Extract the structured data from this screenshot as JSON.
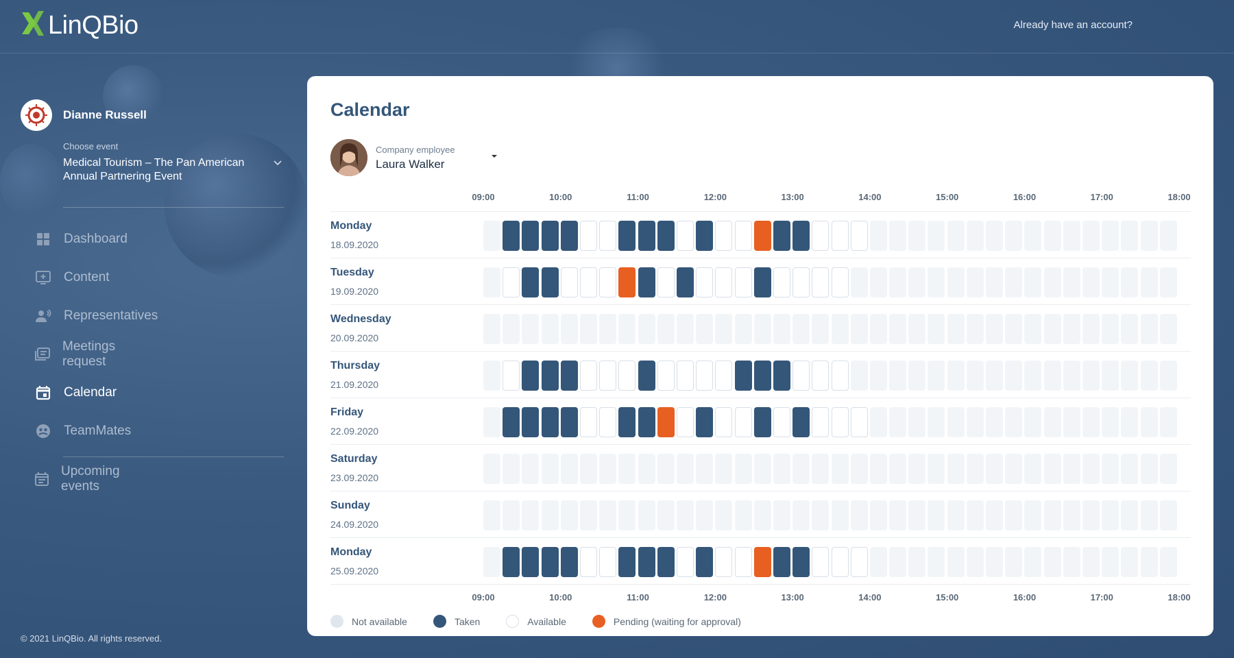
{
  "header": {
    "logo_text": "LinQBio",
    "login_link": "Already have an account?",
    "brand_color": "#7ac943"
  },
  "sidebar": {
    "user_name": "Dianne Russell",
    "event_label": "Choose event",
    "event_title": "Medical Tourism – The Pan American Annual Partnering Event",
    "nav": [
      {
        "label": "Dashboard",
        "icon": "dashboard-icon",
        "active": false
      },
      {
        "label": "Content",
        "icon": "content-icon",
        "active": false
      },
      {
        "label": "Representatives",
        "icon": "representatives-icon",
        "active": false
      },
      {
        "label": "Meetings request",
        "icon": "meetings-icon",
        "active": false
      },
      {
        "label": "Calendar",
        "icon": "calendar-icon",
        "active": true
      },
      {
        "label": "TeamMates",
        "icon": "teammates-icon",
        "active": false
      }
    ],
    "secondary_nav": [
      {
        "label": "Upcoming events",
        "icon": "upcoming-events-icon",
        "active": false
      }
    ],
    "footer": "© 2021 LinQBio. All rights reserved."
  },
  "calendar": {
    "title": "Calendar",
    "employee_label": "Company employee",
    "employee_name": "Laura Walker",
    "time_ticks": [
      "09:00",
      "10:00",
      "11:00",
      "12:00",
      "13:00",
      "14:00",
      "15:00",
      "16:00",
      "17:00",
      "18:00"
    ],
    "slot_codes": {
      "N": "Not available",
      "T": "Taken",
      "A": "Available",
      "P": "Pending (waiting for approval)"
    },
    "days": [
      {
        "name": "Monday",
        "date": "18.09.2020",
        "slots": "NTTTTAATTTATAAPTTAAANNNNNNNNNNNNNNNN"
      },
      {
        "name": "Tuesday",
        "date": "19.09.2020",
        "slots": "NATTAAAPTATAAATAAAANNNNNNNNNNNNNNNNN"
      },
      {
        "name": "Wednesday",
        "date": "20.09.2020",
        "slots": "NNNNNNNNNNNNNNNNNNNNNNNNNNNNNNNNNNNN"
      },
      {
        "name": "Thursday",
        "date": "21.09.2020",
        "slots": "NATTTAAATAAAATTTAAANNNNNNNNNNNNNNNNN"
      },
      {
        "name": "Friday",
        "date": "22.09.2020",
        "slots": "NTTTTAATTPATAATATAAANNNNNNNNNNNNNNNN"
      },
      {
        "name": "Saturday",
        "date": "23.09.2020",
        "slots": "NNNNNNNNNNNNNNNNNNNNNNNNNNNNNNNNNNNN"
      },
      {
        "name": "Sunday",
        "date": "24.09.2020",
        "slots": "NNNNNNNNNNNNNNNNNNNNNNNNNNNNNNNNNNNN"
      },
      {
        "name": "Monday",
        "date": "25.09.2020",
        "slots": "NTTTTAATTTATAAPTTAAANNNNNNNNNNNNNNNN"
      }
    ],
    "legend": [
      {
        "label": "Not available",
        "color": "#dfe6ee"
      },
      {
        "label": "Taken",
        "color": "#345679"
      },
      {
        "label": "Available",
        "color": "#ffffff"
      },
      {
        "label": "Pending (waiting for approval)",
        "color": "#e85f22"
      }
    ]
  }
}
